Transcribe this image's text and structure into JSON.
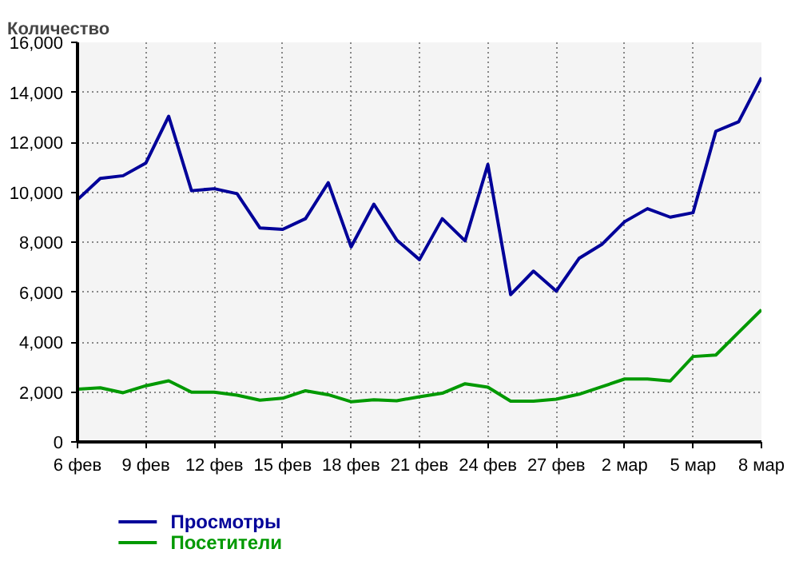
{
  "chart_data": {
    "type": "line",
    "ylabel": "Количество",
    "categories": [
      "6 фев",
      null,
      null,
      "9 фев",
      null,
      null,
      "12 фев",
      null,
      null,
      "15 фев",
      null,
      null,
      "18 фев",
      null,
      null,
      "21 фев",
      null,
      null,
      "24 фев",
      null,
      null,
      "27 фев",
      null,
      null,
      "2 мар",
      null,
      null,
      "5 мар",
      null,
      null,
      "8 мар"
    ],
    "series": [
      {
        "name": "Просмотры",
        "color": "#000099",
        "values": [
          9700,
          10550,
          10660,
          11170,
          13040,
          10060,
          10140,
          9940,
          8570,
          8510,
          8940,
          10380,
          7810,
          9520,
          8090,
          7300,
          8940,
          8050,
          11110,
          5900,
          6840,
          6040,
          7350,
          7910,
          8820,
          9340,
          9000,
          9180,
          12440,
          12820,
          14590
        ]
      },
      {
        "name": "Посетители",
        "color": "#009900",
        "values": [
          2110,
          2170,
          1970,
          2250,
          2450,
          1990,
          1990,
          1870,
          1670,
          1750,
          2050,
          1890,
          1610,
          1690,
          1650,
          1810,
          1950,
          2330,
          2190,
          1630,
          1630,
          1710,
          1910,
          2210,
          2520,
          2520,
          2440,
          3420,
          3480,
          4390,
          5290
        ]
      }
    ],
    "ylim": [
      0,
      16000
    ],
    "yticks": [
      0,
      {
        "value": 2000,
        "label": "2,000"
      },
      {
        "value": 4000,
        "label": "4,000"
      },
      {
        "value": 6000,
        "label": "6,000"
      },
      {
        "value": 8000,
        "label": "8,000"
      },
      {
        "value": 10000,
        "label": "10,000"
      },
      {
        "value": 12000,
        "label": "12,000"
      },
      {
        "value": 14000,
        "label": "14,000"
      },
      {
        "value": 16000,
        "label": "16,000"
      }
    ],
    "grid": true,
    "legend": "bottom left",
    "line_style": "solid"
  }
}
